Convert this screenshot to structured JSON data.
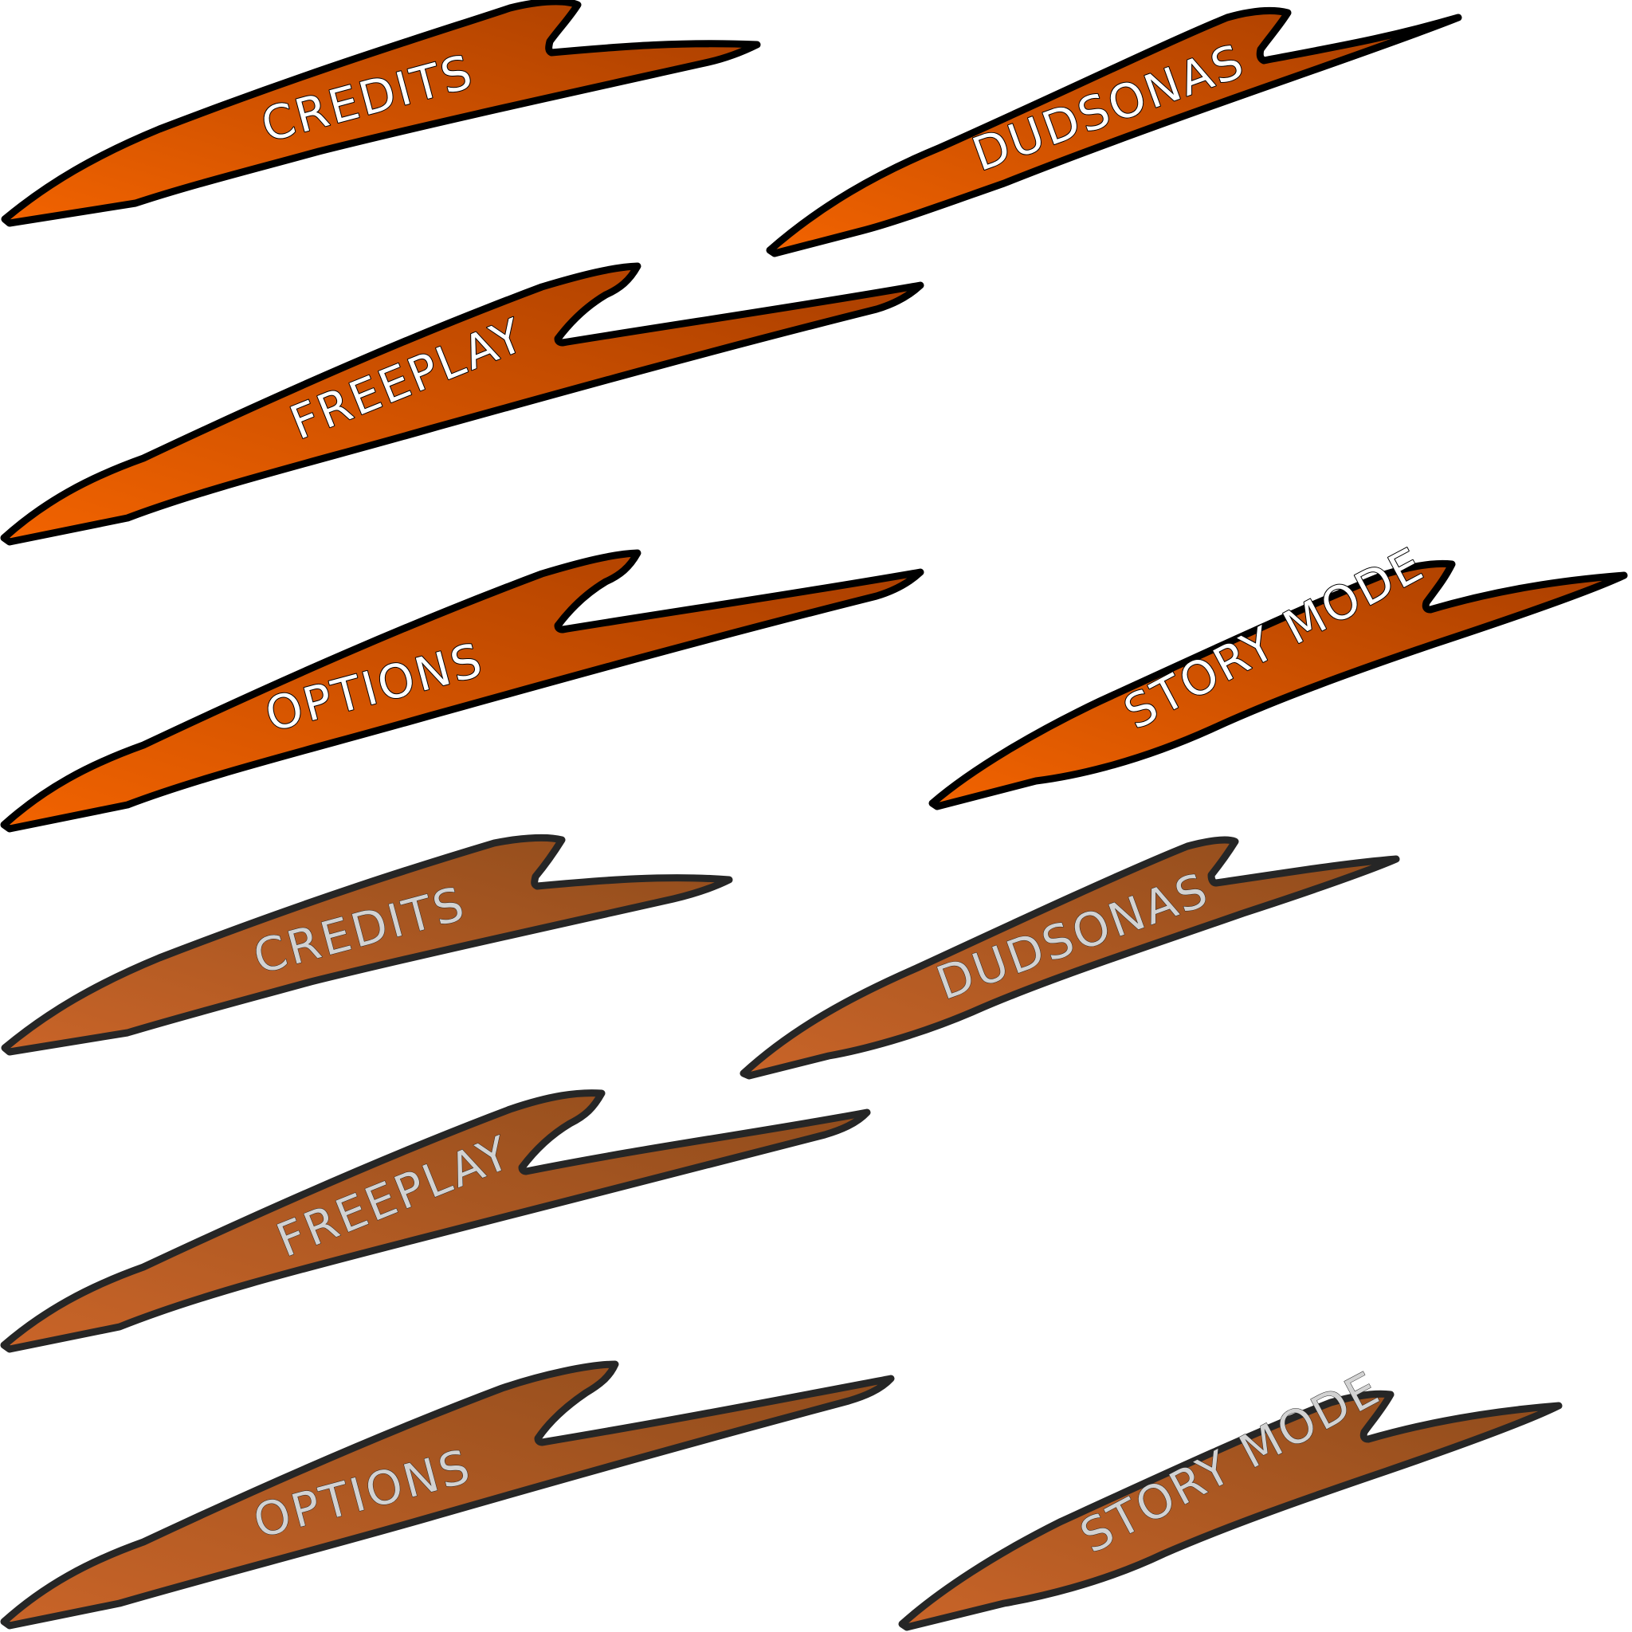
{
  "sprite_sheet": {
    "sprites": [
      {
        "label": "CREDITS",
        "state": "selected"
      },
      {
        "label": "DUDSONAS",
        "state": "selected"
      },
      {
        "label": "FREEPLAY",
        "state": "selected"
      },
      {
        "label": "OPTIONS",
        "state": "selected"
      },
      {
        "label": "STORY MODE",
        "state": "selected"
      },
      {
        "label": "CREDITS",
        "state": "idle"
      },
      {
        "label": "DUDSONAS",
        "state": "idle"
      },
      {
        "label": "FREEPLAY",
        "state": "idle"
      },
      {
        "label": "OPTIONS",
        "state": "idle"
      },
      {
        "label": "STORY MODE",
        "state": "idle"
      }
    ]
  },
  "colors": {
    "selected_fill_light": "#f26300",
    "selected_fill_dark": "#a83e00",
    "selected_border": "#000000",
    "selected_text": "#ffffff",
    "idle_fill_light": "#c96428",
    "idle_fill_dark": "#8f4c1c",
    "idle_border": "#262626",
    "idle_text": "#d2d2d2",
    "background": "#ffffff"
  }
}
